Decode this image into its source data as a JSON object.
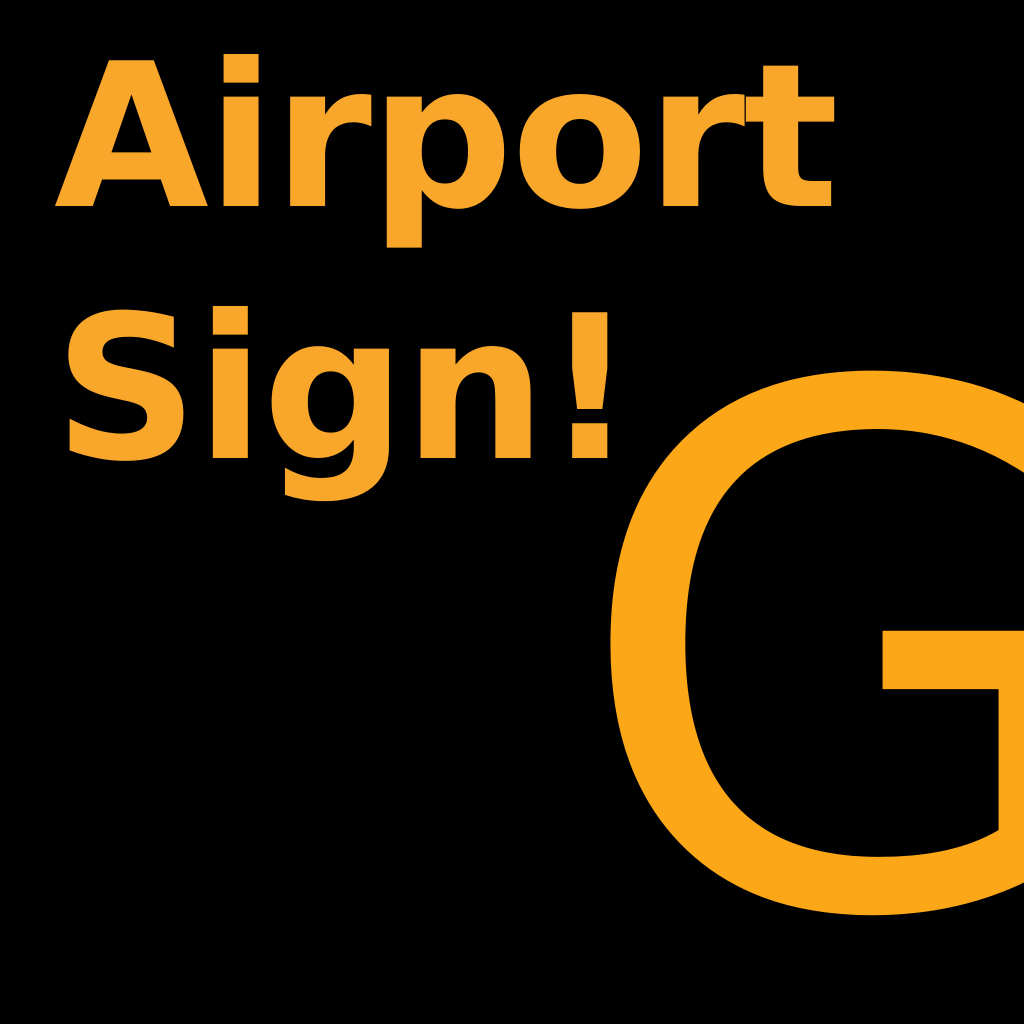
{
  "sign": {
    "title_line_1": "Airport",
    "title_line_2": "Sign!",
    "gate_letter": "G"
  },
  "colors": {
    "background": "#000000",
    "title_text": "#F9A72B",
    "gate_letter": "#FBA718"
  }
}
